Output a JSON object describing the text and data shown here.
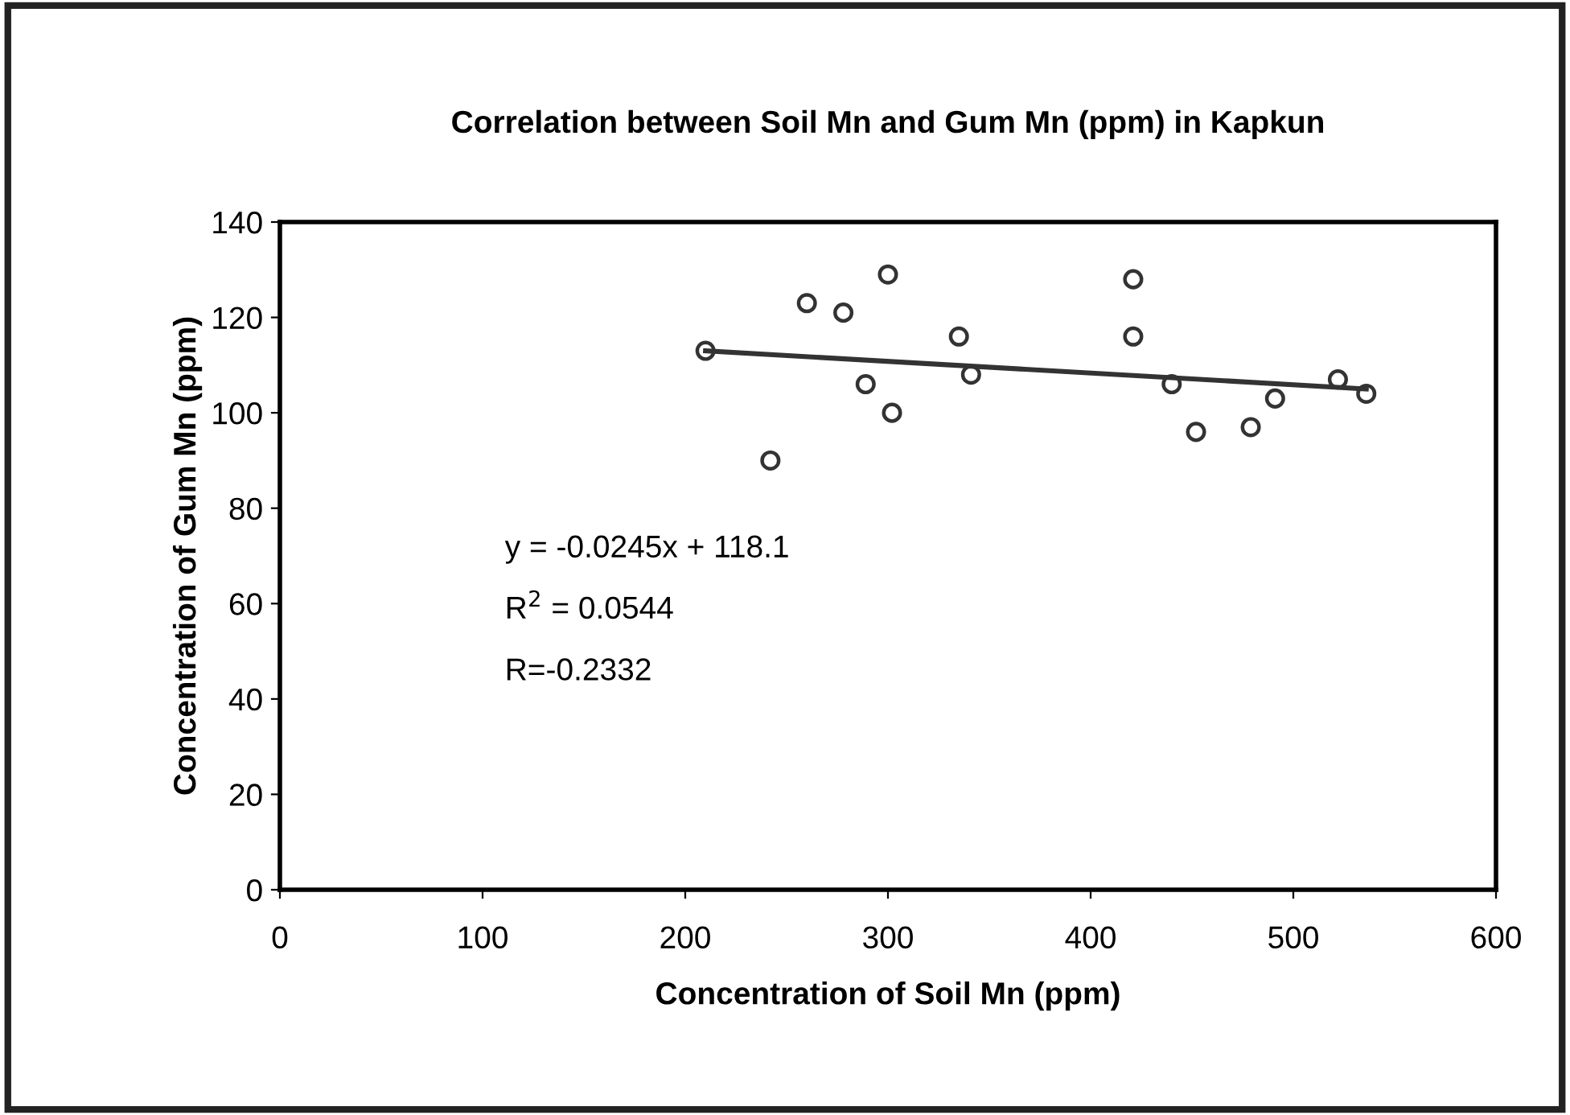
{
  "chart_data": {
    "type": "scatter",
    "title": "Correlation between Soil Mn and Gum Mn (ppm) in Kapkun",
    "xlabel": "Concentration of Soil Mn (ppm)",
    "ylabel": "Concentration of Gum Mn (ppm)",
    "series": [
      {
        "color": "#333333",
        "marker": "circle",
        "x": [
          210,
          242,
          260,
          278,
          289,
          300,
          302,
          335,
          341,
          421,
          421,
          440,
          452,
          479,
          491,
          522,
          536
        ],
        "values": [
          113,
          90,
          123,
          121,
          106,
          129,
          100,
          116,
          108,
          128,
          116,
          106,
          96,
          97,
          103,
          107,
          104
        ]
      },
      {
        "type": "line",
        "color": "#333333",
        "marker": "none",
        "line_style": "solid",
        "x": [
          210,
          536
        ],
        "values": [
          113,
          105
        ]
      }
    ],
    "annotations": [
      "y = -0.0245x + 118.1",
      "R$^{2}$ = 0.0544",
      "R=-0.2332"
    ],
    "xlim": [
      0,
      600
    ],
    "xticks": [
      0,
      100,
      200,
      300,
      400,
      500,
      600
    ],
    "ylim": [
      0,
      140
    ],
    "yticks": [
      0,
      20,
      40,
      60,
      80,
      100,
      120,
      140
    ],
    "grid": false,
    "legend": false
  }
}
